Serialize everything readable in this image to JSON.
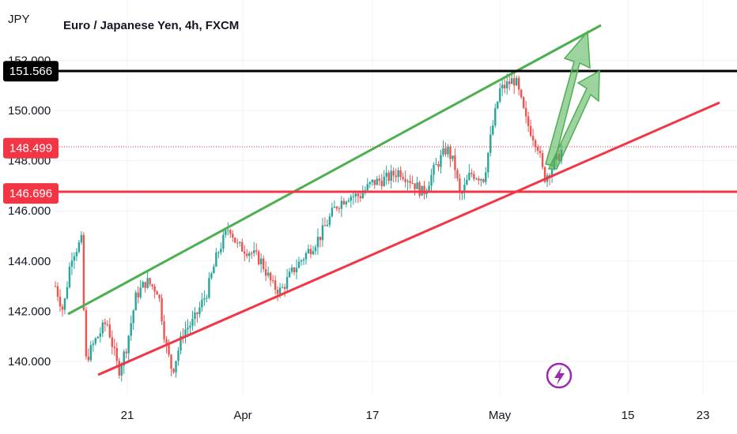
{
  "chart_data": {
    "type": "candlestick",
    "title": "Euro / Japanese Yen, 4h, FXCM",
    "currency_label": "JPY",
    "y_ticks": [
      "152.000",
      "150.000",
      "148.000",
      "146.000",
      "144.000",
      "142.000",
      "140.000"
    ],
    "y_tick_values": [
      152,
      150,
      148,
      146,
      144,
      142,
      140
    ],
    "ylim": [
      138.8,
      153.2
    ],
    "x_ticks": [
      "21",
      "Apr",
      "17",
      "May",
      "15",
      "23"
    ],
    "price_tags": [
      {
        "label": "151.566",
        "value": 151.566,
        "color": "#000000"
      },
      {
        "label": "148.499",
        "value": 148.499,
        "color": "#f23645"
      },
      {
        "label": "146.696",
        "value": 146.696,
        "color": "#f23645"
      }
    ],
    "horizontal_lines": [
      {
        "value": 151.566,
        "color": "#000000"
      },
      {
        "value": 146.696,
        "color": "#f23645"
      },
      {
        "value": 148.499,
        "color": "#f23645",
        "style": "dotted"
      }
    ],
    "trendlines": [
      {
        "name": "upper-channel",
        "color": "#4caf50"
      },
      {
        "name": "lower-channel",
        "color": "#f23645"
      }
    ],
    "colors": {
      "up": "#26a69a",
      "down": "#ef5350",
      "arrow": "#4caf50"
    },
    "bar_count": 215
  }
}
